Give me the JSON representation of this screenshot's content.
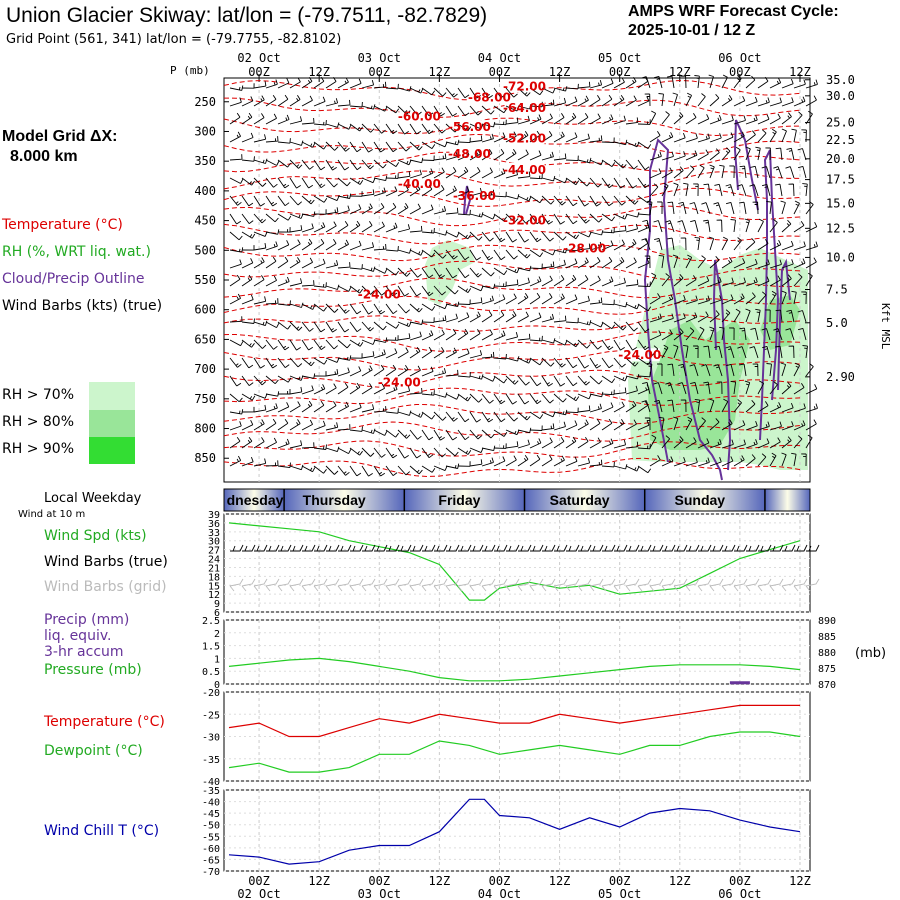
{
  "header": {
    "title": "Union Glacier Skiway:  lat/lon = (-79.7511, -82.7829)",
    "grid_point": "Grid Point (561, 341) lat/lon = (-79.7755, -82.8102)",
    "cycle_line1": "AMPS WRF Forecast Cycle:",
    "cycle_line2": "2025-10-01 / 12  Z"
  },
  "left_panel": {
    "model_grid_1": "Model Grid ΔX:",
    "model_grid_2": "8.000 km",
    "legend_temp": "Temperature (°C)",
    "legend_rh": "RH (%, WRT liq. wat.)",
    "legend_cloud": "Cloud/Precip Outline",
    "legend_wind": "Wind Barbs (kts) (true)",
    "rh70": "RH > 70%",
    "rh80": "RH > 80%",
    "rh90": "RH > 90%",
    "local_weekday": "Local Weekday",
    "wind_at_10m": "Wind at 10 m",
    "wind_spd": "Wind Spd (kts)",
    "wind_barbs_true": "Wind Barbs (true)",
    "wind_barbs_grid": "Wind Barbs (grid)",
    "precip_1": "Precip (mm)",
    "precip_2": "liq. equiv.",
    "precip_3": "3-hr accum",
    "pressure": "Pressure (mb)",
    "temperature": "Temperature (°C)",
    "dewpoint": "Dewpoint (°C)",
    "wind_chill": "Wind Chill T (°C)"
  },
  "colors": {
    "temperature": "#dd0000",
    "green": "#22cc22",
    "cloud": "#663399",
    "wind_chill": "#0000aa",
    "rh70": "#ccf5cc",
    "rh80": "#99e599",
    "rh90": "#33dd33",
    "grid_barbs": "#bbbbbb"
  },
  "chart_data": [
    {
      "type": "time-height",
      "name_ref": "upper",
      "p_label": "P (mb)",
      "kft_label": "Kft MSL",
      "x_tick_labels": [
        "00Z",
        "12Z",
        "00Z",
        "12Z",
        "00Z",
        "12Z",
        "00Z",
        "12Z",
        "00Z",
        "12Z"
      ],
      "x_date_labels": [
        "02 Oct",
        "03 Oct",
        "04 Oct",
        "05 Oct",
        "06 Oct"
      ],
      "x_time_hours": [
        0,
        12,
        24,
        36,
        48,
        60,
        72,
        84,
        96,
        108
      ],
      "xlim_hours": [
        -7,
        110
      ],
      "pressure_ticks": [
        250,
        300,
        350,
        400,
        450,
        500,
        550,
        600,
        650,
        700,
        750,
        800,
        850
      ],
      "ylim_p": [
        890,
        210
      ],
      "kft_ticks": [
        {
          "p": 213,
          "t": "35.0"
        },
        {
          "p": 240,
          "t": "30.0"
        },
        {
          "p": 285,
          "t": "25.0"
        },
        {
          "p": 314,
          "t": "22.5"
        },
        {
          "p": 346,
          "t": "20.0"
        },
        {
          "p": 381,
          "t": "17.5"
        },
        {
          "p": 421,
          "t": "15.0"
        },
        {
          "p": 463,
          "t": "12.5"
        },
        {
          "p": 512,
          "t": "10.0"
        },
        {
          "p": 566,
          "t": "7.5"
        },
        {
          "p": 622,
          "t": "5.0"
        },
        {
          "p": 713,
          "t": "2.90"
        }
      ],
      "temp_labels": [
        {
          "t": "-72.00",
          "h": 53,
          "p": 228
        },
        {
          "t": "-68.00",
          "h": 46,
          "p": 246
        },
        {
          "t": "-64.00",
          "h": 53,
          "p": 264
        },
        {
          "t": "-60.00",
          "h": 32,
          "p": 278
        },
        {
          "t": "-56.00",
          "h": 42,
          "p": 296
        },
        {
          "t": "-52.00",
          "h": 53,
          "p": 315
        },
        {
          "t": "-48.00",
          "h": 42,
          "p": 341
        },
        {
          "t": "-44.00",
          "h": 53,
          "p": 368
        },
        {
          "t": "-40.00",
          "h": 32,
          "p": 392
        },
        {
          "t": "-36.00",
          "h": 43,
          "p": 412
        },
        {
          "t": "-32.00",
          "h": 53,
          "p": 453
        },
        {
          "t": "-28.00",
          "h": 65,
          "p": 500
        },
        {
          "t": "-24.00",
          "h": 24,
          "p": 578
        },
        {
          "t": "-24.00",
          "h": 76,
          "p": 680
        },
        {
          "t": "-24.00",
          "h": 28,
          "p": 726
        }
      ]
    },
    {
      "type": "line",
      "name_ref": "wind",
      "y_ticks": [
        6,
        9,
        12,
        15,
        18,
        21,
        24,
        27,
        30,
        33,
        36,
        39
      ],
      "ylim": [
        6,
        39
      ],
      "series": [
        {
          "name": "Wind Spd (kts)",
          "color": "#22cc22",
          "x": [
            -6,
            0,
            6,
            12,
            18,
            24,
            30,
            36,
            42,
            45,
            48,
            54,
            60,
            66,
            72,
            78,
            84,
            90,
            96,
            102,
            108
          ],
          "values": [
            36,
            35,
            34,
            33,
            30,
            28,
            26,
            22,
            10,
            10,
            14,
            16,
            14,
            15,
            12,
            13,
            14,
            19,
            24,
            27,
            30
          ]
        }
      ],
      "weekday_labels": [
        {
          "t": "dnesday",
          "h": -2
        },
        {
          "t": "Thursday",
          "h": 15
        },
        {
          "t": "Friday",
          "h": 40
        },
        {
          "t": "Saturday",
          "h": 64
        },
        {
          "t": "Sunday",
          "h": 88
        }
      ]
    },
    {
      "type": "line",
      "name_ref": "precip",
      "y_ticks_left": [
        0,
        0.5,
        1,
        1.5,
        2,
        2.5
      ],
      "ylim_left": [
        0,
        2.5
      ],
      "y_ticks_right": [
        870,
        875,
        880,
        885,
        890
      ],
      "ylim_right": [
        870,
        890
      ],
      "right_unit": "(mb)",
      "series": [
        {
          "name": "Pressure (mb)",
          "color": "#22cc22",
          "x": [
            -6,
            0,
            6,
            12,
            18,
            24,
            30,
            36,
            42,
            48,
            54,
            60,
            66,
            72,
            78,
            84,
            90,
            96,
            102,
            108
          ],
          "values": [
            875.5,
            876.5,
            877.5,
            878,
            877,
            875.5,
            874,
            872,
            871,
            871,
            871.5,
            872.5,
            873.5,
            874.5,
            875.5,
            876,
            876,
            876,
            875.5,
            874.5
          ]
        },
        {
          "name": "Precip (mm)",
          "color": "#663399",
          "x": [
            94,
            98
          ],
          "values": [
            0.05,
            0.05
          ]
        }
      ]
    },
    {
      "type": "line",
      "name_ref": "temp",
      "y_ticks": [
        -40,
        -35,
        -30,
        -25,
        -20
      ],
      "ylim": [
        -40,
        -20
      ],
      "series": [
        {
          "name": "Temperature (°C)",
          "color": "#dd0000",
          "x": [
            -6,
            0,
            6,
            12,
            18,
            24,
            30,
            36,
            42,
            48,
            54,
            60,
            66,
            72,
            78,
            84,
            90,
            96,
            102,
            108
          ],
          "values": [
            -28,
            -27,
            -30,
            -30,
            -28,
            -26,
            -27,
            -25,
            -26,
            -27,
            -27,
            -25,
            -26,
            -27,
            -26,
            -25,
            -24,
            -23,
            -23,
            -23
          ]
        },
        {
          "name": "Dewpoint (°C)",
          "color": "#22cc22",
          "x": [
            -6,
            0,
            6,
            12,
            18,
            24,
            30,
            36,
            42,
            48,
            54,
            60,
            66,
            72,
            78,
            84,
            90,
            96,
            102,
            108
          ],
          "values": [
            -37,
            -36,
            -38,
            -38,
            -37,
            -34,
            -34,
            -31,
            -32,
            -34,
            -33,
            -32,
            -33,
            -34,
            -32,
            -32,
            -30,
            -29,
            -29,
            -30
          ]
        }
      ]
    },
    {
      "type": "line",
      "name_ref": "chill",
      "y_ticks": [
        -70,
        -65,
        -60,
        -55,
        -50,
        -45,
        -40,
        -35
      ],
      "ylim": [
        -70,
        -35
      ],
      "series": [
        {
          "name": "Wind Chill T (°C)",
          "color": "#0000aa",
          "x": [
            -6,
            0,
            6,
            12,
            18,
            24,
            30,
            36,
            42,
            45,
            48,
            54,
            60,
            66,
            72,
            78,
            84,
            90,
            96,
            102,
            108
          ],
          "values": [
            -63,
            -64,
            -67,
            -66,
            -61,
            -59,
            -59,
            -53,
            -39,
            -39,
            -46,
            -47,
            -52,
            -47,
            -51,
            -45,
            -43,
            -44,
            -48,
            -51,
            -53
          ]
        }
      ]
    }
  ]
}
